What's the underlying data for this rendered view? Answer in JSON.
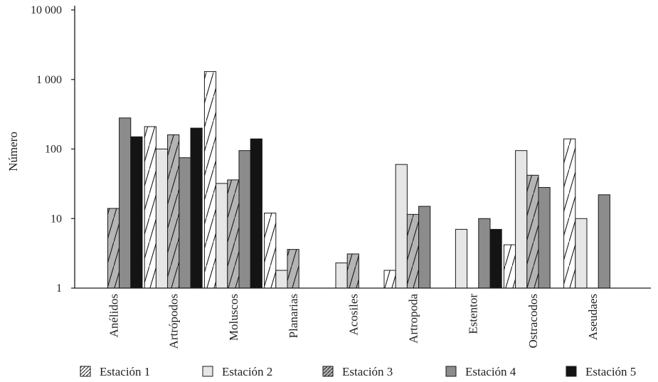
{
  "chart_data": {
    "type": "bar",
    "scale": "log",
    "ylabel": "Número",
    "ylim": [
      1,
      10000
    ],
    "yticks": [
      {
        "value": 1,
        "label": "1"
      },
      {
        "value": 10,
        "label": "10"
      },
      {
        "value": 100,
        "label": "100"
      },
      {
        "value": 1000,
        "label": "1 000"
      },
      {
        "value": 10000,
        "label": "10 000"
      }
    ],
    "categories": [
      "Anélidos",
      "Artrópodos",
      "Moluscos",
      "Planarias",
      "Acosiles",
      "Artropoda",
      "Estentor",
      "Ostracodos",
      "Aseudaes"
    ],
    "series": [
      {
        "name": "Estación 1",
        "pattern": "hatch-white",
        "values": [
          null,
          210,
          1300,
          12,
          null,
          1.8,
          null,
          4.2,
          140
        ]
      },
      {
        "name": "Estación 2",
        "pattern": "light",
        "values": [
          null,
          100,
          32,
          1.8,
          2.3,
          60,
          7,
          95,
          10
        ]
      },
      {
        "name": "Estación 3",
        "pattern": "hatch-gray",
        "values": [
          14,
          160,
          36,
          3.6,
          3.1,
          11.5,
          null,
          42,
          null
        ]
      },
      {
        "name": "Estación 4",
        "pattern": "medium",
        "values": [
          280,
          75,
          95,
          null,
          null,
          15,
          10,
          28,
          22
        ]
      },
      {
        "name": "Estación 5",
        "pattern": "black",
        "values": [
          150,
          200,
          140,
          null,
          null,
          null,
          7,
          null,
          null
        ]
      }
    ],
    "legend_position": "bottom",
    "colors": {
      "light": "#e6e6e6",
      "medium": "#8c8c8c",
      "hatch_gray": "#b4b4b4",
      "black": "#141414",
      "stroke": "#1a1a1a"
    }
  }
}
